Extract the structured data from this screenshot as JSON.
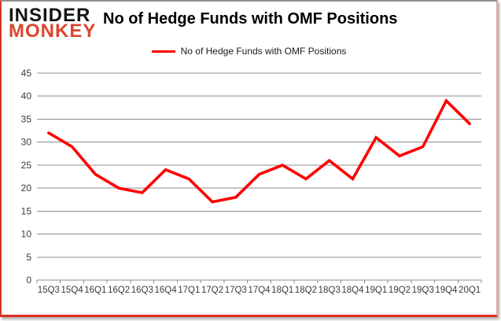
{
  "logo": {
    "line1": "INSIDER",
    "line2": "MONKEY"
  },
  "title": "No of Hedge Funds with OMF Positions",
  "legend": {
    "label": "No of Hedge Funds with OMF Positions"
  },
  "chart_data": {
    "type": "line",
    "title": "No of Hedge Funds with OMF Positions",
    "categories": [
      "15Q3",
      "15Q4",
      "16Q1",
      "16Q2",
      "16Q3",
      "16Q4",
      "17Q1",
      "17Q2",
      "17Q3",
      "17Q4",
      "18Q1",
      "18Q2",
      "18Q3",
      "18Q4",
      "19Q1",
      "19Q2",
      "19Q3",
      "19Q4",
      "20Q1"
    ],
    "series": [
      {
        "name": "No of Hedge Funds with OMF Positions",
        "color": "#ff0000",
        "values": [
          32,
          29,
          23,
          20,
          19,
          24,
          22,
          17,
          18,
          23,
          25,
          22,
          26,
          22,
          31,
          27,
          29,
          39,
          34
        ]
      }
    ],
    "xlabel": "",
    "ylabel": "",
    "ylim": [
      0,
      45
    ],
    "ytick_step": 5,
    "grid": true,
    "legend_position": "top-center"
  },
  "colors": {
    "line": "#ff0000",
    "logo_red": "#d9462e",
    "grid": "#8c8c8c",
    "axis_text": "#3a3a3a"
  }
}
